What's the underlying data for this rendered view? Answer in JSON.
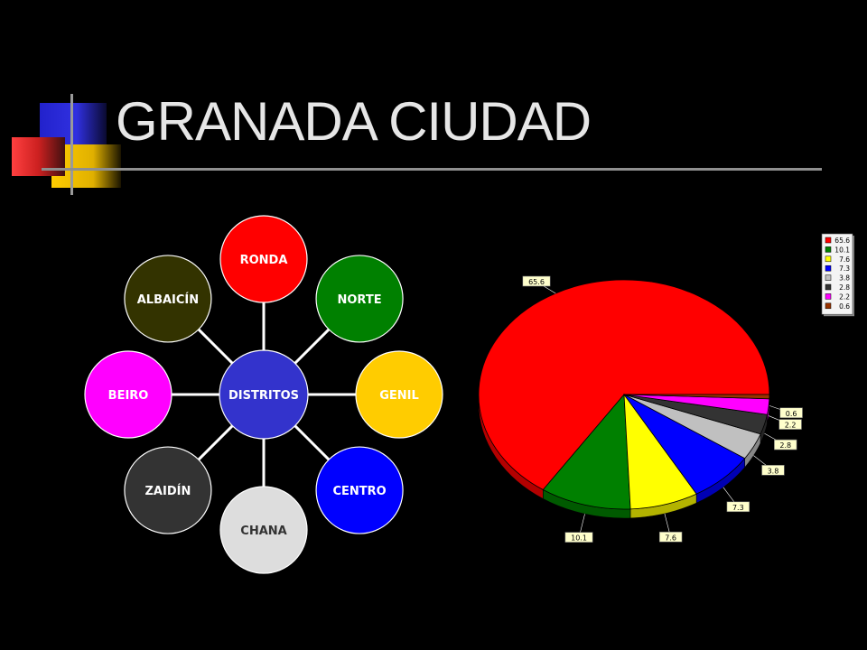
{
  "title": "GRANADA CIUDAD",
  "diagram": {
    "center": {
      "label": "DISTRITOS",
      "color": "#3333cc"
    },
    "nodes": [
      {
        "label": "RONDA",
        "color": "#ff0000",
        "text_color": "#ffffff"
      },
      {
        "label": "NORTE",
        "color": "#008000",
        "text_color": "#ffffff"
      },
      {
        "label": "GENIL",
        "color": "#ffcc00",
        "text_color": "#ffffff"
      },
      {
        "label": "CENTRO",
        "color": "#0000ff",
        "text_color": "#ffffff"
      },
      {
        "label": "CHANA",
        "color": "#dddddd",
        "text_color": "#333333"
      },
      {
        "label": "ZAIDÍN",
        "color": "#333333",
        "text_color": "#ffffff"
      },
      {
        "label": "BEIRO",
        "color": "#ff00ff",
        "text_color": "#ffffff"
      },
      {
        "label": "ALBAICÍN",
        "color": "#333300",
        "text_color": "#ffffff"
      }
    ]
  },
  "chart_data": {
    "type": "pie",
    "values": [
      65.6,
      10.1,
      7.6,
      7.3,
      3.8,
      2.8,
      2.2,
      0.6
    ],
    "labels": [
      "65.6",
      "10.1",
      "7.6",
      "7.3",
      "3.8",
      "2.8",
      "2.2",
      "0.6"
    ],
    "colors": [
      "#ff0000",
      "#008000",
      "#ffff00",
      "#0000ff",
      "#c0c0c0",
      "#333333",
      "#ff00ff",
      "#993300"
    ],
    "legend_entries": [
      "65.6",
      "10.1",
      "7.6",
      "7.3",
      "3.8",
      "2.8",
      "2.2",
      "0.6"
    ],
    "legend_position": "top-right",
    "style": "3d"
  }
}
